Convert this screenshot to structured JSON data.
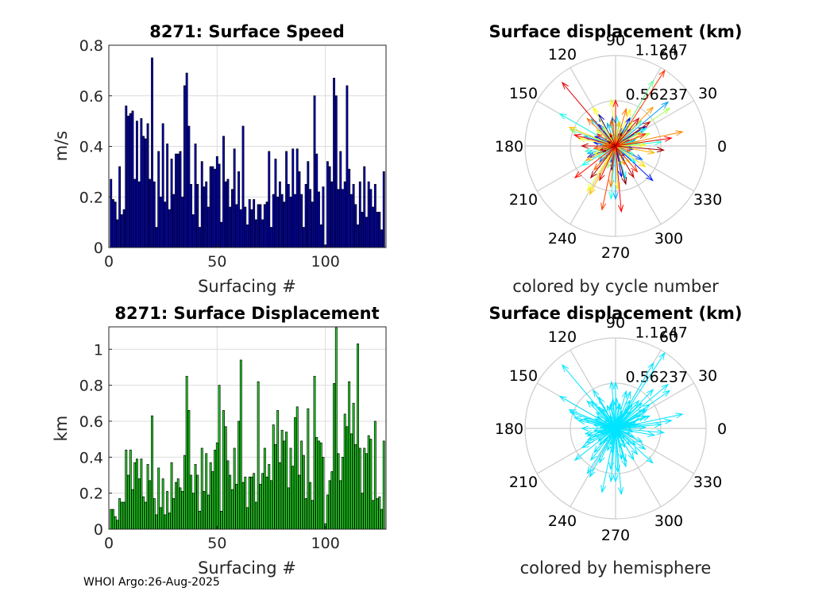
{
  "figure": {
    "footer": "WHOI Argo:26-Aug-2025"
  },
  "chart_data": [
    {
      "type": "bar",
      "title": "8271: Surface Speed",
      "xlabel": "Surfacing #",
      "ylabel": "m/s",
      "xlim": [
        0,
        128
      ],
      "ylim": [
        0,
        0.8
      ],
      "xticks": [
        "0",
        "50",
        "100"
      ],
      "yticks": [
        "0",
        "0.2",
        "0.4",
        "0.6",
        "0.8"
      ],
      "grid": true,
      "bar_color": "#0000c8",
      "x": [
        1,
        2,
        3,
        4,
        5,
        6,
        7,
        8,
        9,
        10,
        11,
        12,
        13,
        14,
        15,
        16,
        17,
        18,
        19,
        20,
        21,
        22,
        23,
        24,
        25,
        26,
        27,
        28,
        29,
        30,
        31,
        32,
        33,
        34,
        35,
        36,
        37,
        38,
        39,
        40,
        41,
        42,
        43,
        44,
        45,
        46,
        47,
        48,
        49,
        50,
        51,
        52,
        53,
        54,
        55,
        56,
        57,
        58,
        59,
        60,
        61,
        62,
        63,
        64,
        65,
        66,
        67,
        68,
        69,
        70,
        71,
        72,
        73,
        74,
        75,
        76,
        77,
        78,
        79,
        80,
        81,
        82,
        83,
        84,
        85,
        86,
        87,
        88,
        89,
        90,
        91,
        92,
        93,
        94,
        95,
        96,
        97,
        98,
        99,
        100,
        101,
        102,
        103,
        104,
        105,
        106,
        107,
        108,
        109,
        110,
        111,
        112,
        113,
        114,
        115,
        116,
        117,
        118,
        119,
        120,
        121,
        122,
        123,
        124,
        125,
        126,
        127
      ],
      "values": [
        0.27,
        0.19,
        0.18,
        0.11,
        0.32,
        0.13,
        0.15,
        0.56,
        0.52,
        0.53,
        0.54,
        0.27,
        0.5,
        0.26,
        0.51,
        0.44,
        0.43,
        0.49,
        0.27,
        0.75,
        0.26,
        0.08,
        0.38,
        0.2,
        0.49,
        0.18,
        0.41,
        0.15,
        0.35,
        0.21,
        0.37,
        0.37,
        0.38,
        0.2,
        0.64,
        0.69,
        0.48,
        0.25,
        0.13,
        0.41,
        0.25,
        0.08,
        0.34,
        0.24,
        0.26,
        0.16,
        0.32,
        0.32,
        0.31,
        0.36,
        0.33,
        0.1,
        0.44,
        0.26,
        0.27,
        0.16,
        0.23,
        0.39,
        0.17,
        0.3,
        0.15,
        0.48,
        0.16,
        0.09,
        0.19,
        0.15,
        0.19,
        0.11,
        0.17,
        0.17,
        0.11,
        0.17,
        0.18,
        0.38,
        0.08,
        0.21,
        0.35,
        0.2,
        0.26,
        0.21,
        0.18,
        0.38,
        0.25,
        0.2,
        0.39,
        0.21,
        0.39,
        0.3,
        0.21,
        0.08,
        0.25,
        0.34,
        0.23,
        0.18,
        0.6,
        0.37,
        0.22,
        0.09,
        0.24,
        0.01,
        0.34,
        0.32,
        0.26,
        0.67,
        0.6,
        0.23,
        0.38,
        0.23,
        0.26,
        0.64,
        0.31,
        0.21,
        0.25,
        0.17,
        0.09,
        0.26,
        0.14,
        0.32,
        0.12,
        0.26,
        0.23,
        0.16,
        0.25,
        0.14,
        0.14,
        0.07,
        0.3
      ]
    },
    {
      "type": "bar",
      "title": "8271: Surface Displacement",
      "xlabel": "Surfacing #",
      "ylabel": "km",
      "xlim": [
        0,
        128
      ],
      "ylim": [
        0,
        1.1247
      ],
      "xticks": [
        "0",
        "50",
        "100"
      ],
      "yticks": [
        "0",
        "0.2",
        "0.4",
        "0.6",
        "0.8",
        "1"
      ],
      "grid": true,
      "bar_color": "#1fe01f",
      "x": [
        1,
        2,
        3,
        4,
        5,
        6,
        7,
        8,
        9,
        10,
        11,
        12,
        13,
        14,
        15,
        16,
        17,
        18,
        19,
        20,
        21,
        22,
        23,
        24,
        25,
        26,
        27,
        28,
        29,
        30,
        31,
        32,
        33,
        34,
        35,
        36,
        37,
        38,
        39,
        40,
        41,
        42,
        43,
        44,
        45,
        46,
        47,
        48,
        49,
        50,
        51,
        52,
        53,
        54,
        55,
        56,
        57,
        58,
        59,
        60,
        61,
        62,
        63,
        64,
        65,
        66,
        67,
        68,
        69,
        70,
        71,
        72,
        73,
        74,
        75,
        76,
        77,
        78,
        79,
        80,
        81,
        82,
        83,
        84,
        85,
        86,
        87,
        88,
        89,
        90,
        91,
        92,
        93,
        94,
        95,
        96,
        97,
        98,
        99,
        100,
        101,
        102,
        103,
        104,
        105,
        106,
        107,
        108,
        109,
        110,
        111,
        112,
        113,
        114,
        115,
        116,
        117,
        118,
        119,
        120,
        121,
        122,
        123,
        124,
        125,
        126,
        127
      ],
      "values": [
        0.11,
        0.11,
        0.07,
        0.05,
        0.17,
        0.15,
        0.15,
        0.44,
        0.3,
        0.44,
        0.22,
        0.37,
        0.39,
        0.28,
        0.39,
        0.18,
        0.15,
        0.36,
        0.27,
        0.63,
        0.17,
        0.08,
        0.34,
        0.12,
        0.28,
        0.08,
        0.21,
        0.09,
        0.37,
        0.17,
        0.26,
        0.28,
        0.23,
        0.21,
        0.41,
        0.85,
        0.66,
        0.3,
        0.2,
        0.36,
        0.3,
        0.1,
        0.45,
        0.21,
        0.42,
        0.19,
        0.37,
        0.32,
        0.44,
        0.48,
        0.8,
        0.1,
        0.66,
        0.57,
        0.38,
        0.3,
        0.22,
        0.45,
        0.25,
        0.6,
        0.94,
        0.26,
        0.29,
        0.12,
        0.29,
        0.29,
        0.31,
        0.15,
        0.82,
        0.25,
        0.31,
        0.45,
        0.29,
        0.36,
        0.27,
        0.58,
        0.47,
        0.66,
        0.37,
        0.55,
        0.49,
        0.54,
        0.23,
        0.45,
        0.35,
        0.62,
        0.68,
        0.3,
        0.49,
        0.41,
        0.17,
        0.67,
        0.26,
        0.16,
        0.85,
        0.51,
        0.49,
        0.48,
        0.4,
        0.03,
        0.19,
        0.27,
        0.32,
        0.81,
        1.12,
        0.42,
        0.27,
        0.4,
        0.64,
        0.57,
        0.82,
        0.53,
        0.7,
        0.47,
        1.03,
        0.45,
        0.2,
        0.45,
        0.42,
        0.52,
        0.5,
        0.16,
        0.6,
        0.17,
        0.18,
        0.11,
        0.49
      ]
    },
    {
      "type": "polar-arrows",
      "title": "Surface displacement (km)",
      "caption": "colored by cycle number",
      "r_max": 1.1247,
      "ring_labels": [
        "0.56237",
        "1.1247"
      ],
      "angle_labels": [
        "0",
        "30",
        "60",
        "90",
        "120",
        "150",
        "180",
        "210",
        "240",
        "270",
        "300",
        "330"
      ],
      "color_mode": "cycle",
      "colormap": "jet",
      "directions_deg": [
        146,
        55,
        229,
        12,
        310,
        77,
        188,
        33,
        261,
        118,
        349,
        202,
        63,
        155,
        281,
        24,
        240,
        96,
        171,
        317,
        7,
        215,
        128,
        292,
        49,
        183,
        254,
        85,
        333,
        140,
        18,
        225,
        70,
        300,
        163,
        40,
        270,
        110,
        355,
        195,
        58,
        245,
        132,
        15,
        287,
        176,
        88,
        320,
        30,
        210,
        150,
        72,
        265,
        5,
        190,
        103,
        230,
        44,
        335,
        160,
        60,
        215,
        125,
        305,
        10,
        250,
        80,
        180,
        35,
        285,
        140,
        20,
        200,
        55,
        310,
        95,
        168,
        238,
        2,
        120,
        68,
        273,
        192,
        325,
        28,
        158,
        242,
        82,
        350,
        206,
        112,
        46,
        296,
        175,
        12,
        263,
        136,
        74,
        228,
        38,
        340,
        186,
        100,
        258,
        57,
        310,
        147,
        22,
        218,
        90,
        275,
        165,
        8,
        245,
        130,
        50,
        195,
        300,
        180,
        35,
        232,
        115,
        355,
        205,
        65,
        150,
        285
      ],
      "magnitudes": [
        0.11,
        0.11,
        0.07,
        0.05,
        0.17,
        0.15,
        0.15,
        0.44,
        0.3,
        0.44,
        0.22,
        0.37,
        0.39,
        0.28,
        0.39,
        0.18,
        0.15,
        0.36,
        0.27,
        0.63,
        0.17,
        0.08,
        0.34,
        0.12,
        0.28,
        0.08,
        0.21,
        0.09,
        0.37,
        0.17,
        0.26,
        0.28,
        0.23,
        0.21,
        0.41,
        0.85,
        0.66,
        0.3,
        0.2,
        0.36,
        0.3,
        0.1,
        0.45,
        0.21,
        0.42,
        0.19,
        0.37,
        0.32,
        0.44,
        0.48,
        0.8,
        0.1,
        0.66,
        0.57,
        0.38,
        0.3,
        0.22,
        0.45,
        0.25,
        0.6,
        0.94,
        0.26,
        0.29,
        0.12,
        0.29,
        0.29,
        0.31,
        0.15,
        0.82,
        0.25,
        0.31,
        0.45,
        0.29,
        0.36,
        0.27,
        0.58,
        0.47,
        0.66,
        0.37,
        0.55,
        0.49,
        0.54,
        0.23,
        0.45,
        0.35,
        0.62,
        0.68,
        0.3,
        0.49,
        0.41,
        0.17,
        0.67,
        0.26,
        0.16,
        0.85,
        0.51,
        0.49,
        0.48,
        0.4,
        0.03,
        0.19,
        0.27,
        0.32,
        0.81,
        1.12,
        0.42,
        0.27,
        0.4,
        0.64,
        0.57,
        0.82,
        0.53,
        0.7,
        0.47,
        1.03,
        0.45,
        0.2,
        0.45,
        0.42,
        0.52,
        0.5,
        0.16,
        0.6,
        0.17,
        0.18,
        0.11,
        0.49
      ]
    },
    {
      "type": "polar-arrows",
      "title": "Surface displacement (km)",
      "caption": "colored by hemisphere",
      "r_max": 1.1247,
      "ring_labels": [
        "0.56237",
        "1.1247"
      ],
      "angle_labels": [
        "0",
        "30",
        "60",
        "90",
        "120",
        "150",
        "180",
        "210",
        "240",
        "270",
        "300",
        "330"
      ],
      "color_mode": "single",
      "arrow_color": "#00e5ff",
      "directions_deg": [
        146,
        55,
        229,
        12,
        310,
        77,
        188,
        33,
        261,
        118,
        349,
        202,
        63,
        155,
        281,
        24,
        240,
        96,
        171,
        317,
        7,
        215,
        128,
        292,
        49,
        183,
        254,
        85,
        333,
        140,
        18,
        225,
        70,
        300,
        163,
        40,
        270,
        110,
        355,
        195,
        58,
        245,
        132,
        15,
        287,
        176,
        88,
        320,
        30,
        210,
        150,
        72,
        265,
        5,
        190,
        103,
        230,
        44,
        335,
        160,
        60,
        215,
        125,
        305,
        10,
        250,
        80,
        180,
        35,
        285,
        140,
        20,
        200,
        55,
        310,
        95,
        168,
        238,
        2,
        120,
        68,
        273,
        192,
        325,
        28,
        158,
        242,
        82,
        350,
        206,
        112,
        46,
        296,
        175,
        12,
        263,
        136,
        74,
        228,
        38,
        340,
        186,
        100,
        258,
        57,
        310,
        147,
        22,
        218,
        90,
        275,
        165,
        8,
        245,
        130,
        50,
        195,
        300,
        180,
        35,
        232,
        115,
        355,
        205,
        65,
        150,
        285
      ],
      "magnitudes": [
        0.11,
        0.11,
        0.07,
        0.05,
        0.17,
        0.15,
        0.15,
        0.44,
        0.3,
        0.44,
        0.22,
        0.37,
        0.39,
        0.28,
        0.39,
        0.18,
        0.15,
        0.36,
        0.27,
        0.63,
        0.17,
        0.08,
        0.34,
        0.12,
        0.28,
        0.08,
        0.21,
        0.09,
        0.37,
        0.17,
        0.26,
        0.28,
        0.23,
        0.21,
        0.41,
        0.85,
        0.66,
        0.3,
        0.2,
        0.36,
        0.3,
        0.1,
        0.45,
        0.21,
        0.42,
        0.19,
        0.37,
        0.32,
        0.44,
        0.48,
        0.8,
        0.1,
        0.66,
        0.57,
        0.38,
        0.3,
        0.22,
        0.45,
        0.25,
        0.6,
        0.94,
        0.26,
        0.29,
        0.12,
        0.29,
        0.29,
        0.31,
        0.15,
        0.82,
        0.25,
        0.31,
        0.45,
        0.29,
        0.36,
        0.27,
        0.58,
        0.47,
        0.66,
        0.37,
        0.55,
        0.49,
        0.54,
        0.23,
        0.45,
        0.35,
        0.62,
        0.68,
        0.3,
        0.49,
        0.41,
        0.17,
        0.67,
        0.26,
        0.16,
        0.85,
        0.51,
        0.49,
        0.48,
        0.4,
        0.03,
        0.19,
        0.27,
        0.32,
        0.81,
        1.12,
        0.42,
        0.27,
        0.4,
        0.64,
        0.57,
        0.82,
        0.53,
        0.7,
        0.47,
        1.03,
        0.45,
        0.2,
        0.45,
        0.42,
        0.52,
        0.5,
        0.16,
        0.6,
        0.17,
        0.18,
        0.11,
        0.49
      ]
    }
  ]
}
